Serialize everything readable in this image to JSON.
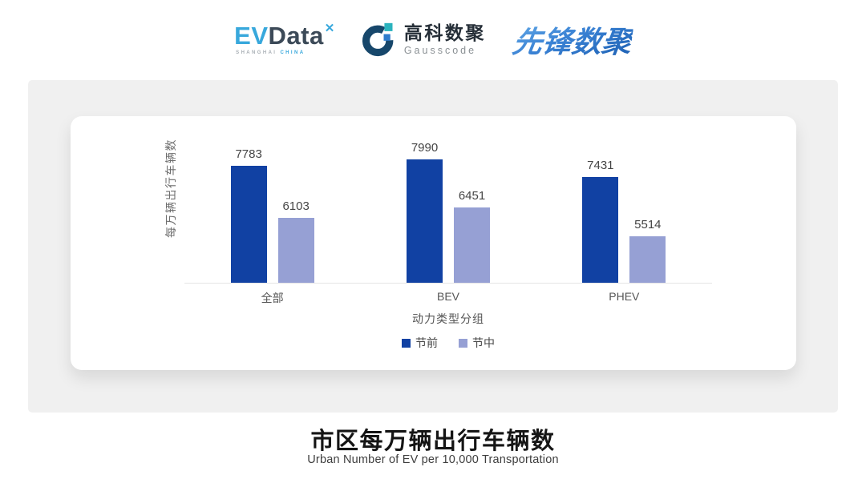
{
  "header": {
    "logos": {
      "evdata": {
        "ev": "EV",
        "data": "Data",
        "mark": "✕",
        "sub1": "SHANGHAI",
        "sub2": "CHINA",
        "ev_color": "#38A8DC",
        "data_color": "#3C4A58"
      },
      "gausscode": {
        "cn": "高科数聚",
        "en": "Gausscode",
        "icon_arc_color": "#17476B",
        "icon_teal_color": "#2BB3BE",
        "icon_blue_color": "#2E7BCC"
      },
      "xianfeng": {
        "text": "先锋数聚",
        "color": "#2E79CC"
      }
    }
  },
  "chart_data": {
    "type": "bar",
    "title": "市区每万辆出行车辆数",
    "subtitle": "Urban Number of EV per 10,000 Transportation",
    "categories": [
      "全部",
      "BEV",
      "PHEV"
    ],
    "series": [
      {
        "name": "节前",
        "color": "#1141A3",
        "values": [
          7783,
          7990,
          7431
        ]
      },
      {
        "name": "节中",
        "color": "#96A0D4",
        "values": [
          6103,
          6451,
          5514
        ]
      }
    ],
    "xlabel": "动力类型分组",
    "ylabel": "每万辆出行车辆数",
    "ylim": [
      4000,
      8400
    ],
    "grid": false,
    "legend_position": "bottom",
    "value_labels": true
  }
}
